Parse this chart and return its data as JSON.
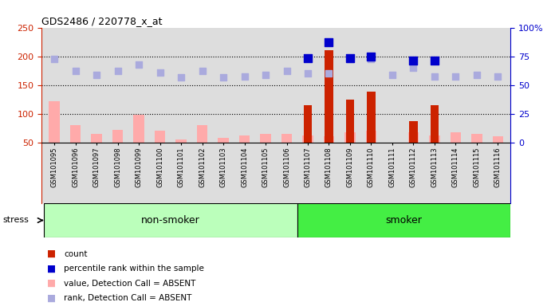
{
  "title": "GDS2486 / 220778_x_at",
  "samples": [
    "GSM101095",
    "GSM101096",
    "GSM101097",
    "GSM101098",
    "GSM101099",
    "GSM101100",
    "GSM101101",
    "GSM101102",
    "GSM101103",
    "GSM101104",
    "GSM101105",
    "GSM101106",
    "GSM101107",
    "GSM101108",
    "GSM101109",
    "GSM101110",
    "GSM101111",
    "GSM101112",
    "GSM101113",
    "GSM101114",
    "GSM101115",
    "GSM101116"
  ],
  "group": [
    "non-smoker",
    "non-smoker",
    "non-smoker",
    "non-smoker",
    "non-smoker",
    "non-smoker",
    "non-smoker",
    "non-smoker",
    "non-smoker",
    "non-smoker",
    "non-smoker",
    "non-smoker",
    "smoker",
    "smoker",
    "smoker",
    "smoker",
    "smoker",
    "smoker",
    "smoker",
    "smoker",
    "smoker",
    "smoker"
  ],
  "value_absent": [
    122,
    80,
    65,
    72,
    98,
    70,
    55,
    80,
    58,
    62,
    65,
    65,
    62,
    60,
    68,
    70,
    48,
    68,
    62,
    68,
    65,
    60
  ],
  "count_bars": [
    0,
    0,
    0,
    0,
    0,
    0,
    0,
    0,
    0,
    0,
    0,
    0,
    115,
    210,
    125,
    138,
    0,
    87,
    115,
    0,
    0,
    0
  ],
  "rank_absent": [
    195,
    175,
    168,
    174,
    185,
    172,
    163,
    175,
    163,
    165,
    168,
    175,
    170,
    170,
    195,
    195,
    168,
    180,
    165,
    165,
    168,
    165
  ],
  "percentile_rank": [
    null,
    null,
    null,
    null,
    null,
    null,
    null,
    null,
    null,
    null,
    null,
    null,
    73,
    87,
    73,
    75,
    null,
    71,
    71,
    null,
    null,
    null
  ],
  "left_ylim": [
    50,
    250
  ],
  "right_ylim": [
    0,
    100
  ],
  "left_yticks": [
    50,
    100,
    150,
    200,
    250
  ],
  "right_yticks": [
    0,
    25,
    50,
    75,
    100
  ],
  "right_yticklabels": [
    "0",
    "25",
    "50",
    "75",
    "100%"
  ],
  "color_count": "#cc2200",
  "color_percentile": "#0000cc",
  "color_value_absent": "#ffaaaa",
  "color_rank_absent": "#aaaadd",
  "non_smoker_bg": "#bbffbb",
  "smoker_bg": "#44ee44",
  "chart_bg": "#dddddd",
  "grid_dotted_values": [
    100,
    150,
    200
  ],
  "legend_labels": [
    "count",
    "percentile rank within the sample",
    "value, Detection Call = ABSENT",
    "rank, Detection Call = ABSENT"
  ],
  "legend_colors": [
    "#cc2200",
    "#0000cc",
    "#ffaaaa",
    "#aaaadd"
  ],
  "non_smoker_count": 12,
  "smoker_count": 10
}
